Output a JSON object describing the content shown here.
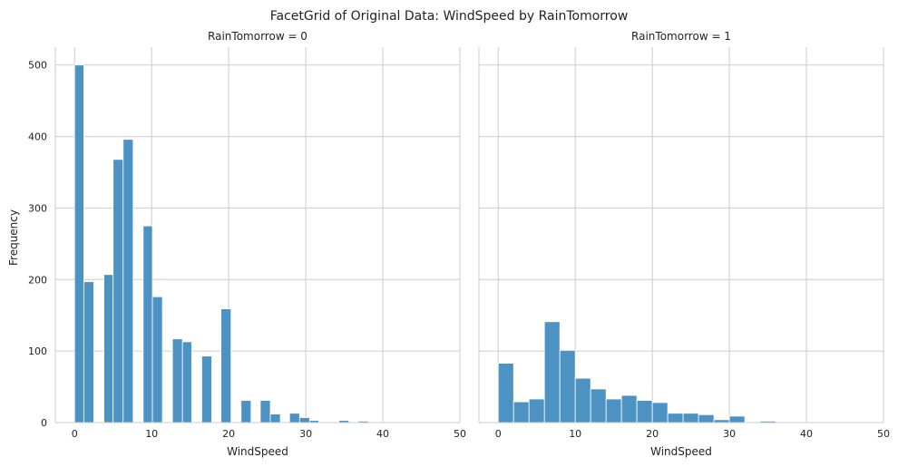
{
  "chart_data": {
    "type": "bar",
    "title": "FacetGrid of Original Data: WindSpeed by RainTomorrow",
    "ylabel": "Frequency",
    "xlabel": "WindSpeed",
    "xlim": [
      -2.5,
      50
    ],
    "ylim": [
      0,
      525
    ],
    "xticks": [
      0,
      10,
      20,
      30,
      40,
      50
    ],
    "yticks": [
      0,
      100,
      200,
      300,
      400,
      500
    ],
    "grid": true,
    "color": "#4c92c3",
    "facets": [
      {
        "title": "RainTomorrow = 0",
        "bins": [
          {
            "x0": 0.0,
            "x1": 1.2,
            "value": 500
          },
          {
            "x0": 1.2,
            "x1": 2.5,
            "value": 197
          },
          {
            "x0": 3.8,
            "x1": 5.0,
            "value": 207
          },
          {
            "x0": 5.0,
            "x1": 6.3,
            "value": 368
          },
          {
            "x0": 6.3,
            "x1": 7.6,
            "value": 396
          },
          {
            "x0": 8.9,
            "x1": 10.1,
            "value": 275
          },
          {
            "x0": 10.1,
            "x1": 11.4,
            "value": 176
          },
          {
            "x0": 12.7,
            "x1": 14.0,
            "value": 117
          },
          {
            "x0": 14.0,
            "x1": 15.2,
            "value": 113
          },
          {
            "x0": 16.5,
            "x1": 17.8,
            "value": 93
          },
          {
            "x0": 19.0,
            "x1": 20.3,
            "value": 159
          },
          {
            "x0": 21.6,
            "x1": 22.9,
            "value": 31
          },
          {
            "x0": 24.1,
            "x1": 25.4,
            "value": 31
          },
          {
            "x0": 25.4,
            "x1": 26.7,
            "value": 12
          },
          {
            "x0": 27.9,
            "x1": 29.2,
            "value": 13
          },
          {
            "x0": 29.2,
            "x1": 30.5,
            "value": 7
          },
          {
            "x0": 30.5,
            "x1": 31.7,
            "value": 3
          },
          {
            "x0": 34.3,
            "x1": 35.6,
            "value": 3
          },
          {
            "x0": 36.8,
            "x1": 38.1,
            "value": 2
          }
        ]
      },
      {
        "title": "RainTomorrow = 1",
        "bins": [
          {
            "x0": 0.0,
            "x1": 2.0,
            "value": 83
          },
          {
            "x0": 2.0,
            "x1": 4.0,
            "value": 29
          },
          {
            "x0": 4.0,
            "x1": 6.0,
            "value": 33
          },
          {
            "x0": 6.0,
            "x1": 8.0,
            "value": 141
          },
          {
            "x0": 8.0,
            "x1": 10.0,
            "value": 101
          },
          {
            "x0": 10.0,
            "x1": 12.0,
            "value": 62
          },
          {
            "x0": 12.0,
            "x1": 14.0,
            "value": 47
          },
          {
            "x0": 14.0,
            "x1": 16.0,
            "value": 33
          },
          {
            "x0": 16.0,
            "x1": 18.0,
            "value": 38
          },
          {
            "x0": 18.0,
            "x1": 20.0,
            "value": 31
          },
          {
            "x0": 20.0,
            "x1": 22.0,
            "value": 28
          },
          {
            "x0": 22.0,
            "x1": 24.0,
            "value": 13
          },
          {
            "x0": 24.0,
            "x1": 26.0,
            "value": 13
          },
          {
            "x0": 26.0,
            "x1": 28.0,
            "value": 11
          },
          {
            "x0": 28.0,
            "x1": 30.0,
            "value": 4
          },
          {
            "x0": 30.0,
            "x1": 32.0,
            "value": 9
          },
          {
            "x0": 34.0,
            "x1": 36.0,
            "value": 2
          },
          {
            "x0": 38.0,
            "x1": 40.0,
            "value": 0.5
          }
        ]
      }
    ]
  }
}
